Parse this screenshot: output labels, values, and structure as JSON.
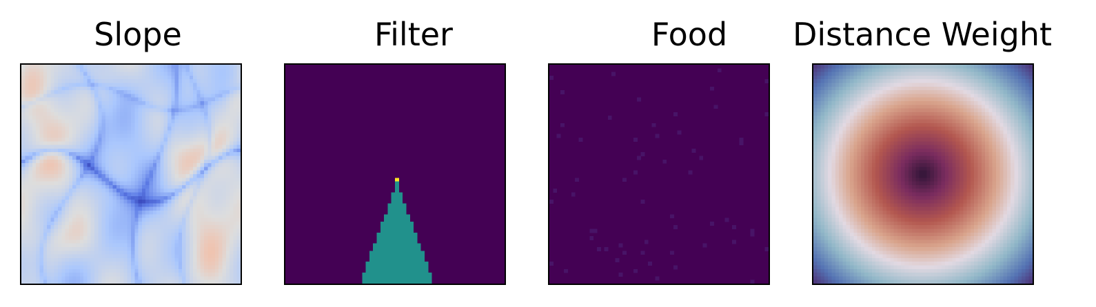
{
  "chart_data": [
    {
      "type": "heatmap",
      "title": "Slope",
      "colormap": "coolwarm",
      "grid": false,
      "colors": {
        "low": "#3b4cc0",
        "mid": "#dddddd",
        "high": "#b40426",
        "frame": "#000000"
      }
    },
    {
      "type": "heatmap",
      "title": "Filter",
      "colormap": "viridis",
      "grid": false,
      "colors": {
        "background": "#440154",
        "cone": "#21918c",
        "apex": "#fde725",
        "frame": "#000000"
      }
    },
    {
      "type": "heatmap",
      "title": "Food",
      "colormap": "viridis",
      "grid": false,
      "colors": {
        "background": "#440154",
        "points": "#481467",
        "frame": "#000000"
      }
    },
    {
      "type": "heatmap",
      "title": "Distance Weight",
      "colormap": "twilight_shifted",
      "grid": false,
      "colors": {
        "center": "#2f1436",
        "ring": "#e2d9e2",
        "edge": "#4b1d63",
        "frame": "#000000"
      }
    }
  ]
}
